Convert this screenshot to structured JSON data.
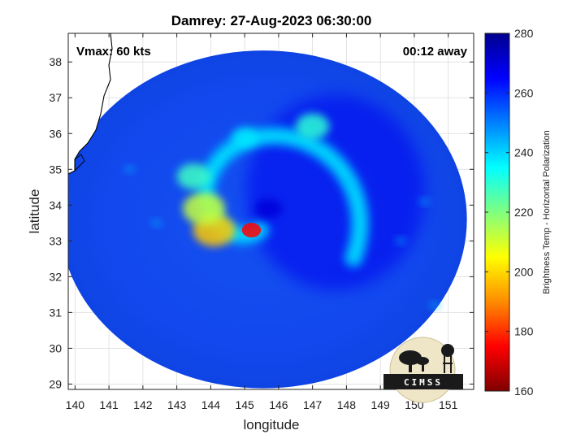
{
  "chart_data": {
    "type": "heatmap",
    "title": "Damrey: 27-Aug-2023 06:30:00",
    "xlabel": "longitude",
    "ylabel": "latitude",
    "xlim": [
      139.8,
      151.75
    ],
    "ylim": [
      28.85,
      38.8
    ],
    "xticks": [
      140,
      141,
      142,
      143,
      144,
      145,
      146,
      147,
      148,
      149,
      150,
      151
    ],
    "yticks": [
      29,
      30,
      31,
      32,
      33,
      34,
      35,
      36,
      37,
      38
    ],
    "grid": true,
    "annotations": {
      "left": "Vmax: 60 kts",
      "right": "00:12 away"
    },
    "swath": {
      "center": [
        145.55,
        33.6
      ],
      "radius_lon": 6.0,
      "radius_lat": 4.72
    },
    "storm_center": [
      145.4,
      33.9
    ],
    "colorbar": {
      "label": "Brightness Temp - Horizontal Polarization",
      "range": [
        160,
        280
      ],
      "ticks": [
        160,
        180,
        200,
        220,
        240,
        260,
        280
      ],
      "colors": [
        "#7f0000",
        "#ff0000",
        "#ff8c00",
        "#ffff00",
        "#80ff80",
        "#00ffff",
        "#0080ff",
        "#0000ff",
        "#00008f"
      ]
    },
    "features": [
      {
        "name": "warm-core-patch",
        "lon": 145.2,
        "lat": 33.3,
        "value": 175
      },
      {
        "name": "inner-band-south",
        "lon": 144.1,
        "lat": 33.3,
        "value": 198
      },
      {
        "name": "inner-band-west",
        "lon": 143.8,
        "lat": 33.9,
        "value": 212
      },
      {
        "name": "band-northwest",
        "lon": 143.5,
        "lat": 34.8,
        "value": 228
      },
      {
        "name": "band-north",
        "lon": 145.0,
        "lat": 35.9,
        "value": 238
      },
      {
        "name": "cell-northeast",
        "lon": 147.0,
        "lat": 36.2,
        "value": 230
      },
      {
        "name": "eye",
        "lon": 145.7,
        "lat": 33.9,
        "value": 270
      }
    ],
    "logo": "CIMSS"
  }
}
